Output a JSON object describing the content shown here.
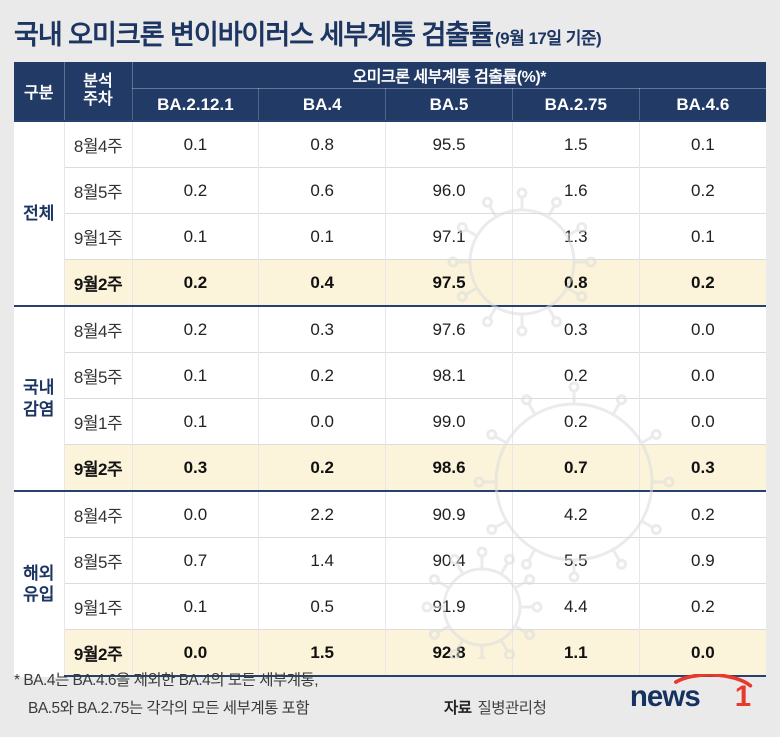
{
  "title": {
    "main": "국내 오미크론 변이바이러스 세부계통 검출률",
    "suffix": "(9월 17일 기준)"
  },
  "table": {
    "header": {
      "col_group": "구분",
      "col_week": "분석\n주차",
      "span_title": "오미크론 세부계통 검출률(%)*",
      "variants": [
        "BA.2.12.1",
        "BA.4",
        "BA.5",
        "BA.2.75",
        "BA.4.6"
      ]
    },
    "groups": [
      {
        "label": "전체",
        "rows": [
          {
            "week": "8월4주",
            "values": [
              "0.1",
              "0.8",
              "95.5",
              "1.5",
              "0.1"
            ],
            "highlight": false
          },
          {
            "week": "8월5주",
            "values": [
              "0.2",
              "0.6",
              "96.0",
              "1.6",
              "0.2"
            ],
            "highlight": false
          },
          {
            "week": "9월1주",
            "values": [
              "0.1",
              "0.1",
              "97.1",
              "1.3",
              "0.1"
            ],
            "highlight": false
          },
          {
            "week": "9월2주",
            "values": [
              "0.2",
              "0.4",
              "97.5",
              "0.8",
              "0.2"
            ],
            "highlight": true
          }
        ]
      },
      {
        "label": "국내\n감염",
        "rows": [
          {
            "week": "8월4주",
            "values": [
              "0.2",
              "0.3",
              "97.6",
              "0.3",
              "0.0"
            ],
            "highlight": false
          },
          {
            "week": "8월5주",
            "values": [
              "0.1",
              "0.2",
              "98.1",
              "0.2",
              "0.0"
            ],
            "highlight": false
          },
          {
            "week": "9월1주",
            "values": [
              "0.1",
              "0.0",
              "99.0",
              "0.2",
              "0.0"
            ],
            "highlight": false
          },
          {
            "week": "9월2주",
            "values": [
              "0.3",
              "0.2",
              "98.6",
              "0.7",
              "0.3"
            ],
            "highlight": true
          }
        ]
      },
      {
        "label": "해외\n유입",
        "rows": [
          {
            "week": "8월4주",
            "values": [
              "0.0",
              "2.2",
              "90.9",
              "4.2",
              "0.2"
            ],
            "highlight": false
          },
          {
            "week": "8월5주",
            "values": [
              "0.7",
              "1.4",
              "90.4",
              "5.5",
              "0.9"
            ],
            "highlight": false
          },
          {
            "week": "9월1주",
            "values": [
              "0.1",
              "0.5",
              "91.9",
              "4.4",
              "0.2"
            ],
            "highlight": false
          },
          {
            "week": "9월2주",
            "values": [
              "0.0",
              "1.5",
              "92.8",
              "1.1",
              "0.0"
            ],
            "highlight": true
          }
        ]
      }
    ]
  },
  "footnote": {
    "line1": "* BA.4는 BA.4.6을 제외한 BA.4의 모든 세부계통,",
    "line2": "BA.5와 BA.2.75는 각각의 모든 세부계통 포함",
    "source_label": "자료",
    "source_value": "질병관리청"
  },
  "logo": {
    "text_main": "news",
    "text_accent": "1"
  },
  "colors": {
    "page_bg": "#eaeaea",
    "navy": "#1c3563",
    "header_bg": "#213a66",
    "highlight_bg": "#fbf4da",
    "accent_red": "#e8392f"
  },
  "chart_data": {
    "type": "table",
    "title": "국내 오미크론 변이바이러스 세부계통 검출률 (9월 17일 기준)",
    "unit": "%",
    "columns": [
      "구분",
      "분석 주차",
      "BA.2.12.1",
      "BA.4",
      "BA.5",
      "BA.2.75",
      "BA.4.6"
    ],
    "rows": [
      [
        "전체",
        "8월4주",
        0.1,
        0.8,
        95.5,
        1.5,
        0.1
      ],
      [
        "전체",
        "8월5주",
        0.2,
        0.6,
        96.0,
        1.6,
        0.2
      ],
      [
        "전체",
        "9월1주",
        0.1,
        0.1,
        97.1,
        1.3,
        0.1
      ],
      [
        "전체",
        "9월2주",
        0.2,
        0.4,
        97.5,
        0.8,
        0.2
      ],
      [
        "국내 감염",
        "8월4주",
        0.2,
        0.3,
        97.6,
        0.3,
        0.0
      ],
      [
        "국내 감염",
        "8월5주",
        0.1,
        0.2,
        98.1,
        0.2,
        0.0
      ],
      [
        "국내 감염",
        "9월1주",
        0.1,
        0.0,
        99.0,
        0.2,
        0.0
      ],
      [
        "국내 감염",
        "9월2주",
        0.3,
        0.2,
        98.6,
        0.7,
        0.3
      ],
      [
        "해외 유입",
        "8월4주",
        0.0,
        2.2,
        90.9,
        4.2,
        0.2
      ],
      [
        "해외 유입",
        "8월5주",
        0.7,
        1.4,
        90.4,
        5.5,
        0.9
      ],
      [
        "해외 유입",
        "9월1주",
        0.1,
        0.5,
        91.9,
        4.4,
        0.2
      ],
      [
        "해외 유입",
        "9월2주",
        0.0,
        1.5,
        92.8,
        1.1,
        0.0
      ]
    ],
    "highlighted_week": "9월2주",
    "footnote": "* BA.4는 BA.4.6을 제외한 BA.4의 모든 세부계통, BA.5와 BA.2.75는 각각의 모든 세부계통 포함",
    "source": "질병관리청"
  }
}
